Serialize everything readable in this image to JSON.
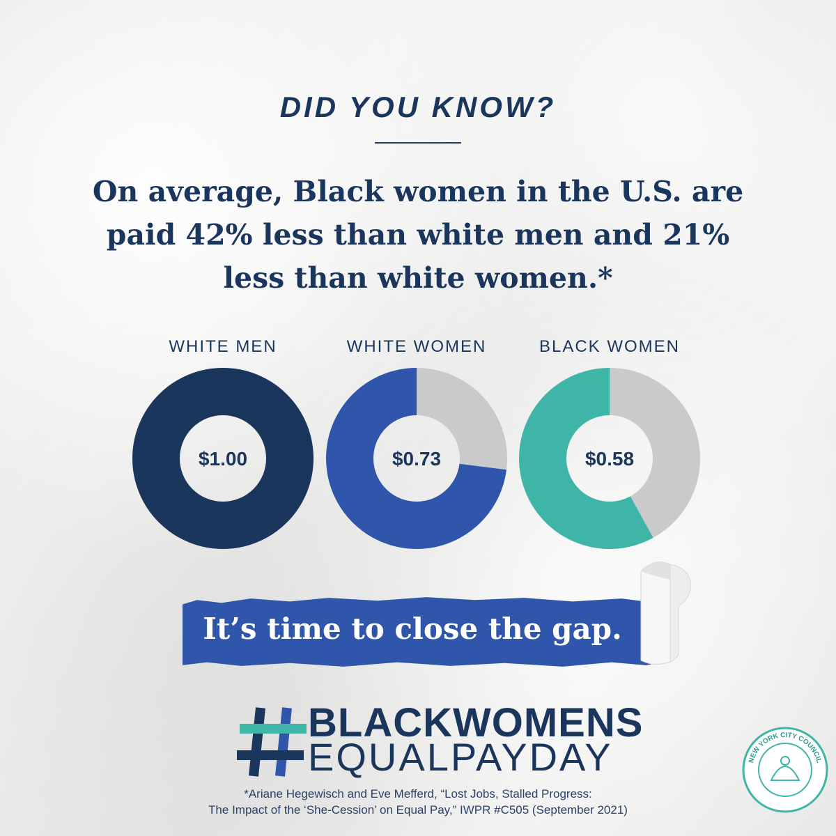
{
  "kicker": "DID YOU KNOW?",
  "lead": {
    "line1": "On average, Black women in the U.S. are",
    "line2_a": "paid ",
    "line2_b": "42%",
    "line2_c": " less than white men and ",
    "line2_d": "21%",
    "line3": "less than white women.*"
  },
  "chart_data": {
    "type": "donut",
    "title": "",
    "categories": [
      "WHITE MEN",
      "WHITE WOMEN",
      "BLACK WOMEN"
    ],
    "values": [
      1.0,
      0.73,
      0.58
    ],
    "value_labels": [
      "$1.00",
      "$0.73",
      "$0.58"
    ],
    "colors": [
      "#1b365d",
      "#2f56aa",
      "#3fb5a8"
    ],
    "remainder_color": "#c9cacc"
  },
  "banner": "It’s time to close the gap.",
  "hashtag": {
    "line1": "BLACKWOMENS",
    "line2": "EQUALPAYDAY"
  },
  "citation": {
    "line1": "*Ariane Hegewisch and Eve Mefferd, “Lost Jobs, Stalled Progress:",
    "line2": "The Impact of the ‘She-Cession’ on Equal Pay,” IWPR #C505 (September 2021)"
  },
  "seal_text": "NEW YORK CITY COUNCIL",
  "colors": {
    "navy": "#1b365d",
    "blue": "#2f56aa",
    "teal": "#3fb5a8"
  }
}
